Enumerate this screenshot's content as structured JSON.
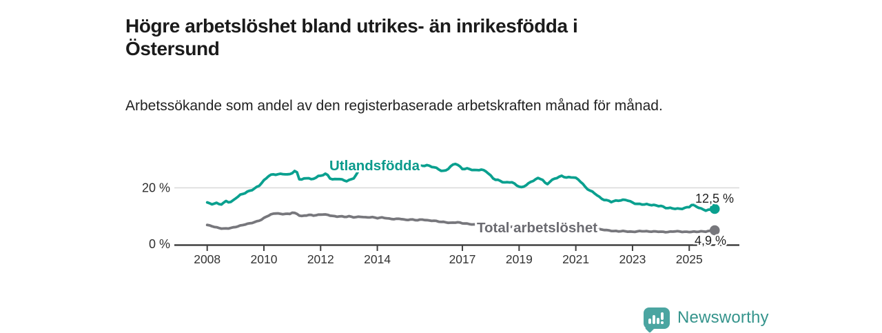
{
  "header": {
    "title": "Högre arbetslöshet bland utrikes- än inrikesfödda i Östersund",
    "subtitle": "Arbetssökande som andel av den registerbaserade arbetskraften månad för månad."
  },
  "branding": {
    "name": "Newsworthy",
    "logo_icon": "bar-chart-speech-bubble-icon",
    "icon_color": "#4ba5a1",
    "text_color": "#35948c"
  },
  "chart_data": {
    "type": "line",
    "title": "Högre arbetslöshet bland utrikes- än inrikesfödda i Östersund",
    "subtitle": "Arbetssökande som andel av den registerbaserade arbetskraften månad för månad.",
    "unit": "%",
    "xlabel": "",
    "ylabel": "",
    "ylim": [
      0,
      30
    ],
    "x_range_years": [
      2006.85,
      2026.8
    ],
    "grid": "single horizontal gridline at 20 %",
    "legend_position": "inline labels on lines",
    "x_ticks": [
      "2008",
      "2010",
      "2012",
      "2014",
      "2017",
      "2019",
      "2021",
      "2023",
      "2025"
    ],
    "x_tick_years": [
      2008,
      2010,
      2012,
      2014,
      2017,
      2019,
      2021,
      2023,
      2025
    ],
    "y_ticks": [
      {
        "value": 20,
        "label": "20 %"
      },
      {
        "value": 0,
        "label": "0 %"
      }
    ],
    "colors": {
      "utlandsfodda": "#0aa08f",
      "total": "#77777c",
      "gridline": "#dadada",
      "axis": "#404040",
      "tick_text": "#333333",
      "value_text": "#1f1f1f"
    },
    "series": [
      {
        "name": "Utlandsfödda",
        "color": "#0aa08f",
        "label_color": "#0a9a8c",
        "end_value": 12.5,
        "end_label": "12,5 %",
        "points": [
          [
            2008.0,
            14.8
          ],
          [
            2008.08,
            14.4
          ],
          [
            2008.17,
            14.2
          ],
          [
            2008.25,
            14.5
          ],
          [
            2008.33,
            14.6
          ],
          [
            2008.42,
            14.3
          ],
          [
            2008.5,
            14.3
          ],
          [
            2008.58,
            14.7
          ],
          [
            2008.67,
            15.3
          ],
          [
            2008.75,
            15.0
          ],
          [
            2008.83,
            14.9
          ],
          [
            2008.92,
            15.4
          ],
          [
            2009.0,
            16.2
          ],
          [
            2009.17,
            17.4
          ],
          [
            2009.33,
            18.2
          ],
          [
            2009.5,
            19.0
          ],
          [
            2009.67,
            19.8
          ],
          [
            2009.83,
            20.8
          ],
          [
            2010.0,
            22.5
          ],
          [
            2010.17,
            24.2
          ],
          [
            2010.33,
            24.7
          ],
          [
            2010.5,
            24.8
          ],
          [
            2010.67,
            25.1
          ],
          [
            2010.83,
            24.7
          ],
          [
            2011.0,
            25.3
          ],
          [
            2011.08,
            25.8
          ],
          [
            2011.17,
            25.4
          ],
          [
            2011.27,
            22.5
          ],
          [
            2011.42,
            23.2
          ],
          [
            2011.55,
            23.7
          ],
          [
            2011.65,
            22.9
          ],
          [
            2011.8,
            23.6
          ],
          [
            2011.9,
            24.1
          ],
          [
            2012.05,
            24.5
          ],
          [
            2012.2,
            25.0
          ],
          [
            2012.37,
            22.9
          ],
          [
            2012.5,
            22.9
          ],
          [
            2012.62,
            23.3
          ],
          [
            2012.75,
            22.9
          ],
          [
            2012.93,
            22.5
          ],
          [
            2013.05,
            22.9
          ],
          [
            2013.2,
            23.7
          ],
          [
            2013.33,
            25.8
          ],
          [
            2013.5,
            26.3
          ],
          [
            2013.67,
            26.6
          ],
          [
            2013.83,
            26.4
          ],
          [
            2014.0,
            26.8
          ],
          [
            2014.25,
            26.5
          ],
          [
            2014.5,
            27.0
          ],
          [
            2014.75,
            26.7
          ],
          [
            2015.0,
            27.1
          ],
          [
            2015.25,
            27.4
          ],
          [
            2015.5,
            27.7
          ],
          [
            2015.76,
            27.9
          ],
          [
            2015.96,
            27.4
          ],
          [
            2016.13,
            26.9
          ],
          [
            2016.3,
            25.9
          ],
          [
            2016.44,
            26.4
          ],
          [
            2016.6,
            27.6
          ],
          [
            2016.73,
            28.7
          ],
          [
            2016.85,
            27.9
          ],
          [
            2017.02,
            26.6
          ],
          [
            2017.22,
            26.9
          ],
          [
            2017.41,
            26.3
          ],
          [
            2017.63,
            26.5
          ],
          [
            2017.83,
            25.9
          ],
          [
            2017.95,
            24.6
          ],
          [
            2018.12,
            23.0
          ],
          [
            2018.31,
            22.6
          ],
          [
            2018.51,
            21.9
          ],
          [
            2018.72,
            22.2
          ],
          [
            2018.87,
            21.1
          ],
          [
            2019.0,
            20.4
          ],
          [
            2019.1,
            19.9
          ],
          [
            2019.25,
            21.0
          ],
          [
            2019.4,
            22.0
          ],
          [
            2019.55,
            23.0
          ],
          [
            2019.7,
            23.6
          ],
          [
            2019.85,
            22.8
          ],
          [
            2019.96,
            20.9
          ],
          [
            2020.1,
            22.3
          ],
          [
            2020.3,
            23.4
          ],
          [
            2020.5,
            24.2
          ],
          [
            2020.7,
            23.7
          ],
          [
            2020.9,
            23.9
          ],
          [
            2021.05,
            23.2
          ],
          [
            2021.2,
            21.9
          ],
          [
            2021.35,
            19.9
          ],
          [
            2021.55,
            18.7
          ],
          [
            2021.7,
            17.9
          ],
          [
            2021.9,
            16.2
          ],
          [
            2022.1,
            15.5
          ],
          [
            2022.25,
            15.0
          ],
          [
            2022.5,
            15.4
          ],
          [
            2022.8,
            15.8
          ],
          [
            2023.0,
            14.8
          ],
          [
            2023.2,
            14.2
          ],
          [
            2023.5,
            14.0
          ],
          [
            2023.75,
            13.8
          ],
          [
            2024.0,
            13.6
          ],
          [
            2024.2,
            12.9
          ],
          [
            2024.4,
            12.7
          ],
          [
            2024.6,
            12.4
          ],
          [
            2024.8,
            12.6
          ],
          [
            2025.0,
            13.3
          ],
          [
            2025.1,
            14.1
          ],
          [
            2025.25,
            13.5
          ],
          [
            2025.45,
            12.4
          ],
          [
            2025.6,
            11.9
          ],
          [
            2025.72,
            12.1
          ],
          [
            2025.85,
            12.5
          ]
        ]
      },
      {
        "name": "Total arbetslöshet",
        "color": "#77777c",
        "label_color": "#6b6b71",
        "end_value": 4.9,
        "end_label": "4,9 %",
        "points": [
          [
            2008.0,
            6.8
          ],
          [
            2008.15,
            6.4
          ],
          [
            2008.3,
            6.0
          ],
          [
            2008.45,
            5.7
          ],
          [
            2008.6,
            5.5
          ],
          [
            2008.75,
            5.6
          ],
          [
            2008.9,
            5.8
          ],
          [
            2009.1,
            6.3
          ],
          [
            2009.3,
            6.9
          ],
          [
            2009.5,
            7.4
          ],
          [
            2009.7,
            7.9
          ],
          [
            2009.9,
            8.6
          ],
          [
            2010.1,
            9.8
          ],
          [
            2010.3,
            10.7
          ],
          [
            2010.45,
            11.0
          ],
          [
            2010.6,
            10.7
          ],
          [
            2010.75,
            10.8
          ],
          [
            2010.9,
            10.7
          ],
          [
            2011.0,
            11.2
          ],
          [
            2011.15,
            10.8
          ],
          [
            2011.3,
            9.8
          ],
          [
            2011.45,
            10.1
          ],
          [
            2011.6,
            10.4
          ],
          [
            2011.75,
            10.2
          ],
          [
            2011.9,
            10.4
          ],
          [
            2012.1,
            10.6
          ],
          [
            2012.25,
            10.3
          ],
          [
            2012.4,
            10.0
          ],
          [
            2012.55,
            9.7
          ],
          [
            2012.7,
            9.9
          ],
          [
            2012.85,
            9.7
          ],
          [
            2013.0,
            9.9
          ],
          [
            2013.2,
            9.5
          ],
          [
            2013.4,
            9.7
          ],
          [
            2013.6,
            9.4
          ],
          [
            2013.8,
            9.6
          ],
          [
            2014.0,
            9.3
          ],
          [
            2014.2,
            9.5
          ],
          [
            2014.4,
            9.0
          ],
          [
            2014.6,
            8.8
          ],
          [
            2014.8,
            9.0
          ],
          [
            2015.0,
            8.6
          ],
          [
            2015.2,
            8.8
          ],
          [
            2015.4,
            8.5
          ],
          [
            2015.6,
            8.7
          ],
          [
            2015.8,
            8.3
          ],
          [
            2016.0,
            8.3
          ],
          [
            2016.2,
            8.0
          ],
          [
            2016.4,
            7.8
          ],
          [
            2016.6,
            7.5
          ],
          [
            2016.8,
            7.7
          ],
          [
            2017.0,
            7.4
          ],
          [
            2017.2,
            7.2
          ],
          [
            2017.4,
            7.0
          ],
          [
            2017.6,
            6.9
          ],
          [
            2017.75,
            6.8
          ],
          [
            2018.0,
            6.6
          ],
          [
            2018.5,
            6.3
          ],
          [
            2019.0,
            6.0
          ],
          [
            2019.5,
            5.8
          ],
          [
            2020.0,
            6.2
          ],
          [
            2020.5,
            6.6
          ],
          [
            2021.0,
            6.2
          ],
          [
            2021.5,
            5.7
          ],
          [
            2022.0,
            5.1
          ],
          [
            2022.3,
            4.6
          ],
          [
            2022.5,
            4.5
          ],
          [
            2022.7,
            4.6
          ],
          [
            2023.0,
            4.4
          ],
          [
            2023.3,
            4.6
          ],
          [
            2023.6,
            4.4
          ],
          [
            2023.9,
            4.5
          ],
          [
            2024.2,
            4.3
          ],
          [
            2024.5,
            4.5
          ],
          [
            2024.8,
            4.3
          ],
          [
            2025.1,
            4.4
          ],
          [
            2025.4,
            4.5
          ],
          [
            2025.6,
            4.4
          ],
          [
            2025.85,
            4.9
          ]
        ]
      }
    ]
  }
}
